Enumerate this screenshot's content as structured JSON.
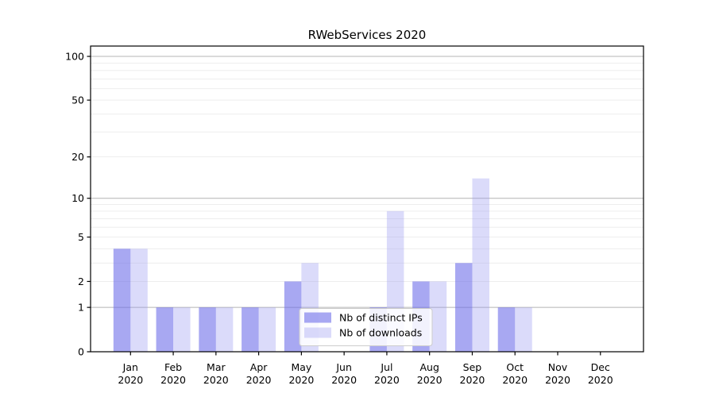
{
  "chart_data": {
    "type": "bar",
    "title": "RWebServices 2020",
    "categories": [
      "Jan",
      "Feb",
      "Mar",
      "Apr",
      "May",
      "Jun",
      "Jul",
      "Aug",
      "Sep",
      "Oct",
      "Nov",
      "Dec"
    ],
    "category_year_line": "2020",
    "series": [
      {
        "name": "Nb of distinct IPs",
        "color": "#a9a9f1",
        "fill_rgba": "rgba(110,110,233,0.60)",
        "values": [
          4,
          1,
          1,
          1,
          2,
          0,
          1,
          2,
          3,
          1,
          0,
          0
        ]
      },
      {
        "name": "Nb of downloads",
        "color": "#dbdbfa",
        "fill_rgba": "rgba(152,152,241,0.35)",
        "values": [
          4,
          1,
          1,
          1,
          3,
          0,
          8,
          2,
          14,
          1,
          0,
          0
        ]
      }
    ],
    "y_axis": {
      "scale": "log1p",
      "tick_values": [
        0,
        1,
        2,
        5,
        10,
        20,
        50,
        100
      ],
      "major_gridlines": [
        1,
        10,
        100
      ],
      "minor_gridlines": [
        2,
        3,
        4,
        5,
        6,
        7,
        8,
        9,
        20,
        30,
        40,
        50,
        60,
        70,
        80,
        90
      ],
      "ylim_top": 117
    },
    "legend": {
      "entries": [
        "Nb of distinct IPs",
        "Nb of downloads"
      ],
      "position": "inside-bottom-center"
    },
    "colors": {
      "axis": "#000000",
      "major_grid": "#b4b4b4",
      "minor_grid": "#ebebeb",
      "legend_bg": "rgba(255,255,255,0.85)",
      "legend_border": "#cccccc",
      "background": "#ffffff"
    }
  }
}
